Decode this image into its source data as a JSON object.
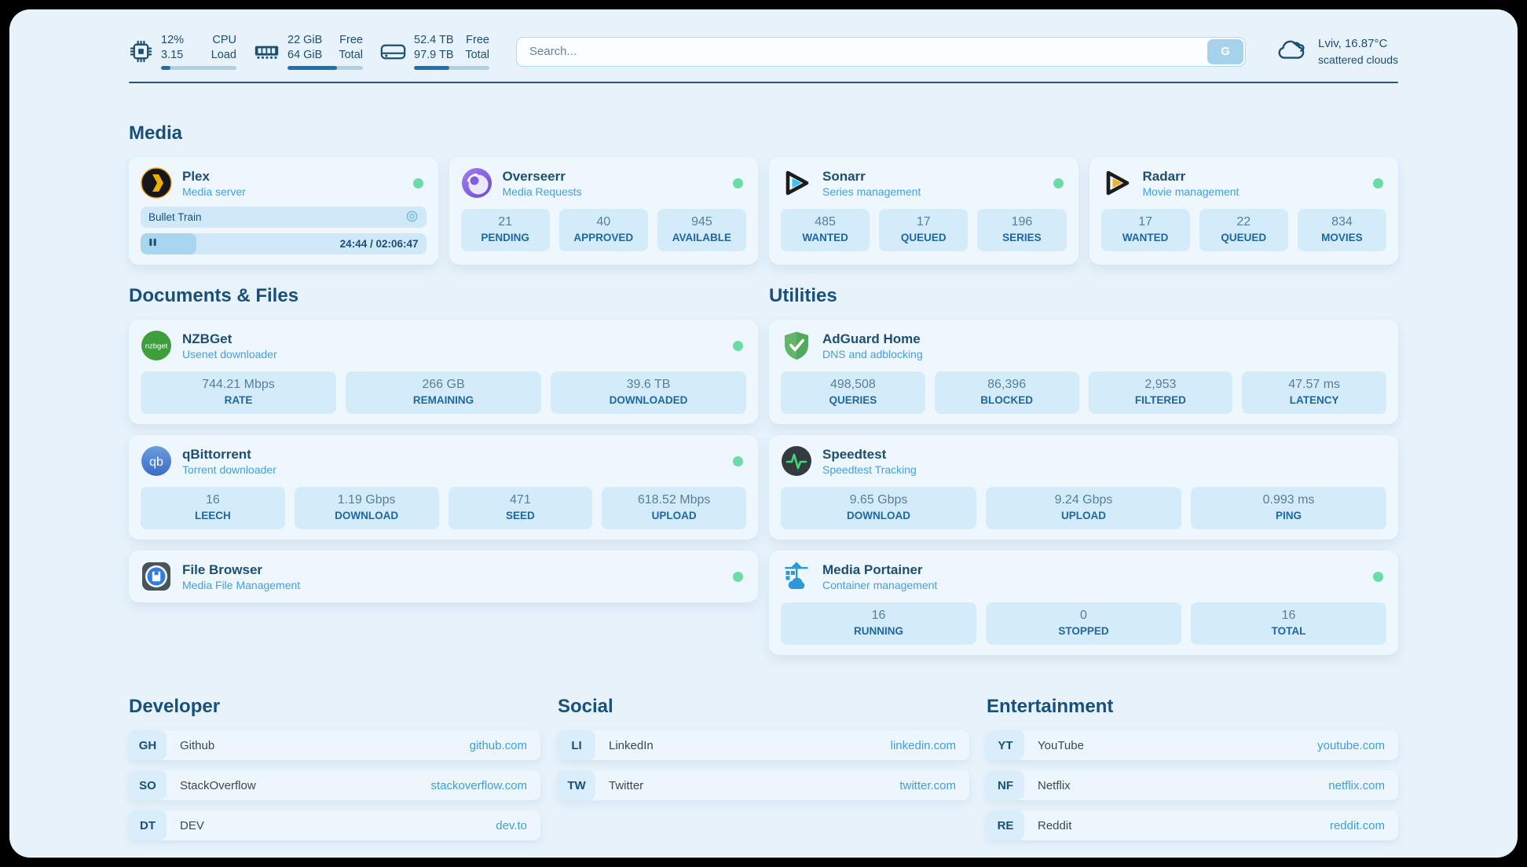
{
  "colors": {
    "accent_navy": "#1d4e74",
    "link_blue": "#3f9ddb",
    "online_green": "#6cdca6",
    "page_bg": "#e7f2fb"
  },
  "header": {
    "stats": [
      {
        "icon": "cpu-icon",
        "rows": [
          {
            "value": "12%",
            "label": "CPU"
          },
          {
            "value": "3.15",
            "label": "Load"
          }
        ],
        "progress_pct": 12
      },
      {
        "icon": "ram-icon",
        "rows": [
          {
            "value": "22 GiB",
            "label": "Free"
          },
          {
            "value": "64 GiB",
            "label": "Total"
          }
        ],
        "progress_pct": 66
      },
      {
        "icon": "disk-icon",
        "rows": [
          {
            "value": "52.4 TB",
            "label": "Free"
          },
          {
            "value": "97.9 TB",
            "label": "Total"
          }
        ],
        "progress_pct": 47
      }
    ],
    "search": {
      "placeholder": "Search...",
      "button_label": "G"
    },
    "weather": {
      "icon": "cloud-icon",
      "location": "Lviv, 16.87°C",
      "condition": "scattered clouds"
    }
  },
  "sections": {
    "media": {
      "title": "Media"
    },
    "documents": {
      "title": "Documents & Files"
    },
    "utilities": {
      "title": "Utilities"
    }
  },
  "apps": {
    "plex": {
      "name": "Plex",
      "desc": "Media server",
      "icon": "plex-icon",
      "online": true,
      "now_playing": {
        "title": "Bullet Train",
        "time": "24:44 / 02:06:47",
        "progress_pct": 19.5
      }
    },
    "overseerr": {
      "name": "Overseerr",
      "desc": "Media Requests",
      "icon": "overseerr-icon",
      "online": true,
      "stats": [
        {
          "value": "21",
          "label": "PENDING"
        },
        {
          "value": "40",
          "label": "APPROVED"
        },
        {
          "value": "945",
          "label": "AVAILABLE"
        }
      ]
    },
    "sonarr": {
      "name": "Sonarr",
      "desc": "Series management",
      "icon": "sonarr-icon",
      "online": true,
      "stats": [
        {
          "value": "485",
          "label": "WANTED"
        },
        {
          "value": "17",
          "label": "QUEUED"
        },
        {
          "value": "196",
          "label": "SERIES"
        }
      ]
    },
    "radarr": {
      "name": "Radarr",
      "desc": "Movie management",
      "icon": "radarr-icon",
      "online": true,
      "stats": [
        {
          "value": "17",
          "label": "WANTED"
        },
        {
          "value": "22",
          "label": "QUEUED"
        },
        {
          "value": "834",
          "label": "MOVIES"
        }
      ]
    },
    "nzbget": {
      "name": "NZBGet",
      "desc": "Usenet downloader",
      "icon": "nzbget-icon",
      "online": true,
      "stats": [
        {
          "value": "744.21 Mbps",
          "label": "RATE"
        },
        {
          "value": "266 GB",
          "label": "REMAINING"
        },
        {
          "value": "39.6 TB",
          "label": "DOWNLOADED"
        }
      ]
    },
    "qbittorrent": {
      "name": "qBittorrent",
      "desc": "Torrent downloader",
      "icon": "qbittorrent-icon",
      "online": true,
      "stats": [
        {
          "value": "16",
          "label": "LEECH"
        },
        {
          "value": "1.19 Gbps",
          "label": "DOWNLOAD"
        },
        {
          "value": "471",
          "label": "SEED"
        },
        {
          "value": "618.52 Mbps",
          "label": "UPLOAD"
        }
      ]
    },
    "filebrowser": {
      "name": "File Browser",
      "desc": "Media File Management",
      "icon": "filebrowser-icon",
      "online": true
    },
    "adguard": {
      "name": "AdGuard Home",
      "desc": "DNS and adblocking",
      "icon": "adguard-icon",
      "online": false,
      "stats": [
        {
          "value": "498,508",
          "label": "QUERIES"
        },
        {
          "value": "86,396",
          "label": "BLOCKED"
        },
        {
          "value": "2,953",
          "label": "FILTERED"
        },
        {
          "value": "47.57 ms",
          "label": "LATENCY"
        }
      ]
    },
    "speedtest": {
      "name": "Speedtest",
      "desc": "Speedtest Tracking",
      "icon": "speedtest-icon",
      "online": false,
      "stats": [
        {
          "value": "9.65 Gbps",
          "label": "DOWNLOAD"
        },
        {
          "value": "9.24 Gbps",
          "label": "UPLOAD"
        },
        {
          "value": "0.993 ms",
          "label": "PING"
        }
      ]
    },
    "portainer": {
      "name": "Media Portainer",
      "desc": "Container management",
      "icon": "portainer-icon",
      "online": true,
      "stats": [
        {
          "value": "16",
          "label": "RUNNING"
        },
        {
          "value": "0",
          "label": "STOPPED"
        },
        {
          "value": "16",
          "label": "TOTAL"
        }
      ]
    }
  },
  "bookmarks": {
    "developer": {
      "title": "Developer",
      "links": [
        {
          "abbr": "GH",
          "name": "Github",
          "url": "github.com"
        },
        {
          "abbr": "SO",
          "name": "StackOverflow",
          "url": "stackoverflow.com"
        },
        {
          "abbr": "DT",
          "name": "DEV",
          "url": "dev.to"
        }
      ]
    },
    "social": {
      "title": "Social",
      "links": [
        {
          "abbr": "LI",
          "name": "LinkedIn",
          "url": "linkedin.com"
        },
        {
          "abbr": "TW",
          "name": "Twitter",
          "url": "twitter.com"
        }
      ]
    },
    "entertainment": {
      "title": "Entertainment",
      "links": [
        {
          "abbr": "YT",
          "name": "YouTube",
          "url": "youtube.com"
        },
        {
          "abbr": "NF",
          "name": "Netflix",
          "url": "netflix.com"
        },
        {
          "abbr": "RE",
          "name": "Reddit",
          "url": "reddit.com"
        }
      ]
    }
  }
}
